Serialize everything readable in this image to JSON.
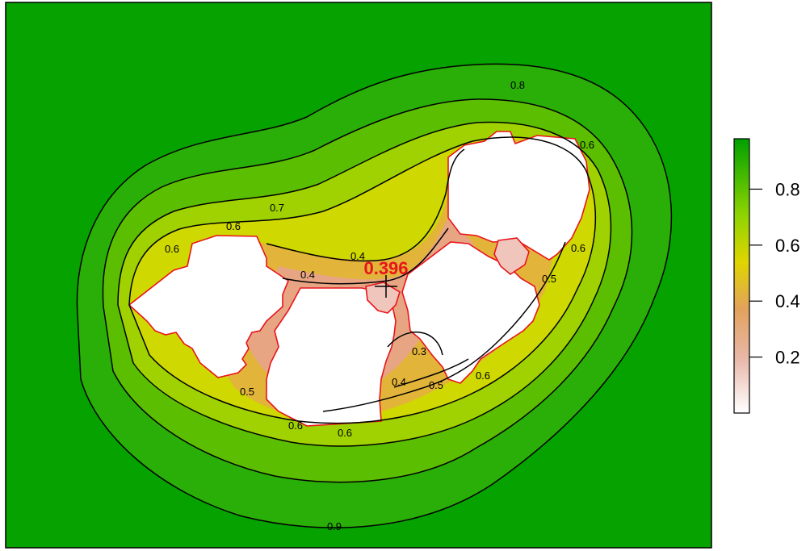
{
  "chart_data": {
    "type": "heatmap",
    "title": "",
    "xlabel": "",
    "ylabel": "",
    "colorbar": {
      "range": [
        0.0,
        0.98
      ],
      "ticks": [
        "0.2",
        "0.4",
        "0.6",
        "0.8"
      ],
      "tick_values": [
        0.2,
        0.4,
        0.6,
        0.8
      ],
      "colors": [
        "#ffffff",
        "#e8b7a8",
        "#e2a25c",
        "#e0d500",
        "#8fd400",
        "#00a000"
      ]
    },
    "contour_levels": [
      "0.3",
      "0.4",
      "0.5",
      "0.6",
      "0.7",
      "0.8",
      "0.9"
    ],
    "contour_labels": [
      {
        "text": "0.8",
        "level": 0.8
      },
      {
        "text": "0.7",
        "level": 0.7
      },
      {
        "text": "0.6",
        "level": 0.6
      },
      {
        "text": "0.6",
        "level": 0.6
      },
      {
        "text": "0.6",
        "level": 0.6
      },
      {
        "text": "0.6",
        "level": 0.6
      },
      {
        "text": "0.6",
        "level": 0.6
      },
      {
        "text": "0.6",
        "level": 0.6
      },
      {
        "text": "0.6",
        "level": 0.6
      },
      {
        "text": "0.5",
        "level": 0.5
      },
      {
        "text": "0.5",
        "level": 0.5
      },
      {
        "text": "0.5",
        "level": 0.5
      },
      {
        "text": "0.4",
        "level": 0.4
      },
      {
        "text": "0.4",
        "level": 0.4
      },
      {
        "text": "0.4",
        "level": 0.4
      },
      {
        "text": "0.3",
        "level": 0.3
      },
      {
        "text": "0.9",
        "level": 0.9
      }
    ],
    "highlight": {
      "label": "0.396",
      "value": 0.396,
      "color": "#e8141c"
    },
    "grid": false,
    "legend": "colorbar right"
  }
}
